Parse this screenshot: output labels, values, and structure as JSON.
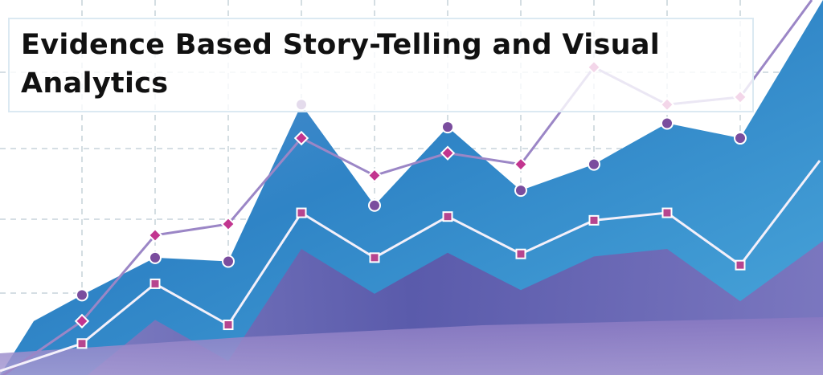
{
  "title": "Evidence Based Story-Telling and Visual Analytics",
  "colors": {
    "area_blue": "#3a8ecf",
    "area_violet": "#6a5aa8",
    "line_violet": "#9b86c6",
    "line_white": "#f4f0fa",
    "marker_circle": "#7a4d9e",
    "marker_diamond": "#c2358f",
    "marker_square": "#b6458f",
    "grid": "#bccbd3"
  },
  "chart_data": {
    "type": "line",
    "title": "Evidence Based Story-Telling and Visual Analytics",
    "xlabel": "",
    "ylabel": "",
    "x": [
      1,
      2,
      3,
      4,
      5,
      6,
      7,
      8,
      9,
      10
    ],
    "ylim": [
      0,
      100
    ],
    "grid": true,
    "legend": "none",
    "series": [
      {
        "marker": "diamond",
        "values": [
          14,
          37,
          40,
          63,
          53,
          59,
          56,
          82,
          72,
          74
        ]
      },
      {
        "marker": "circle",
        "values": [
          21,
          31,
          30,
          72,
          45,
          66,
          49,
          56,
          67,
          63
        ]
      },
      {
        "marker": "square",
        "values": [
          8,
          24,
          13,
          43,
          31,
          42,
          32,
          41,
          43,
          29
        ]
      }
    ]
  }
}
